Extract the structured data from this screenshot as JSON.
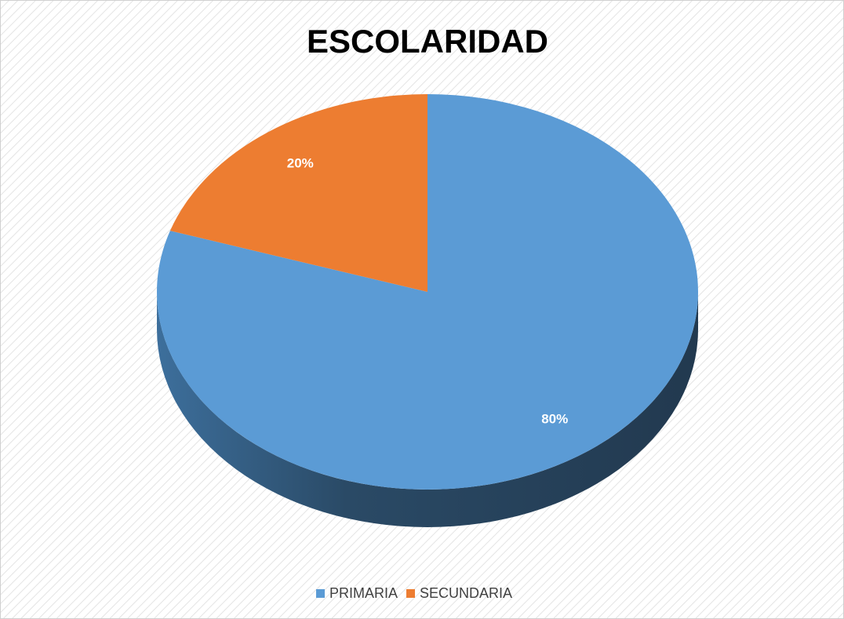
{
  "chart_data": {
    "type": "pie",
    "title": "ESCOLARIDAD",
    "categories": [
      "PRIMARIA",
      "SECUNDARIA"
    ],
    "values": [
      80,
      20
    ],
    "value_labels": [
      "80%",
      "20%"
    ],
    "colors": [
      "#5b9bd5",
      "#ed7d31"
    ],
    "legend": "bottom"
  }
}
